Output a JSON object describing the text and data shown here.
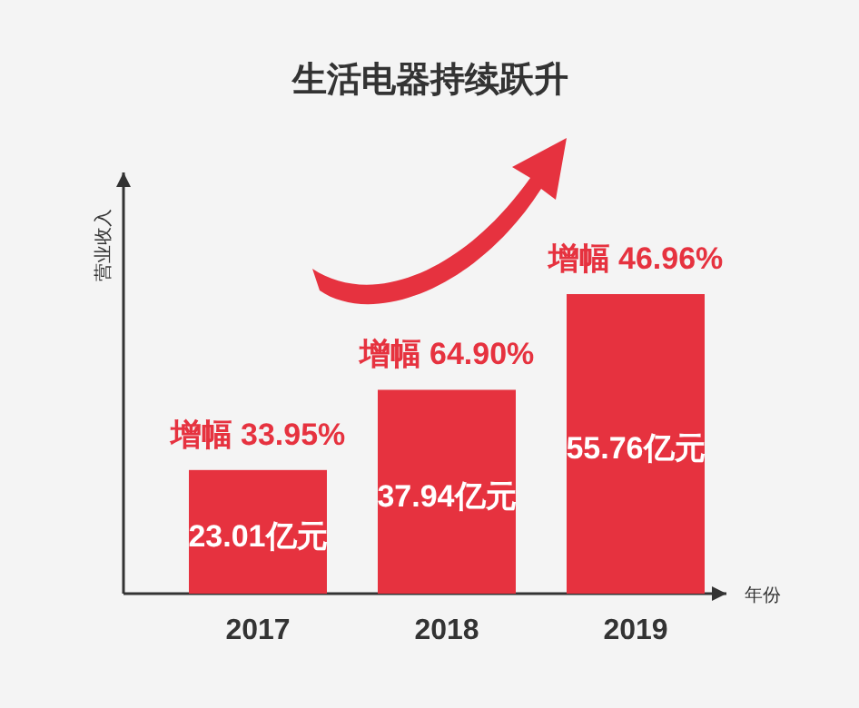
{
  "chart_data": {
    "type": "bar",
    "title": "生活电器持续跃升",
    "ylabel": "营业收入",
    "xlabel": "年份",
    "categories": [
      "2017",
      "2018",
      "2019"
    ],
    "values": [
      23.01,
      37.94,
      55.76
    ],
    "color": "#e6323f",
    "value_labels": [
      "23.01亿元",
      "37.94亿元",
      "55.76亿元"
    ],
    "annotations": [
      {
        "text": "增幅 33.95%",
        "x": "2017",
        "y": 23.01
      },
      {
        "text": "增幅 64.90%",
        "x": "2018",
        "y": 37.94
      },
      {
        "text": "增幅 46.96%",
        "x": "2019",
        "y": 55.76
      }
    ]
  }
}
